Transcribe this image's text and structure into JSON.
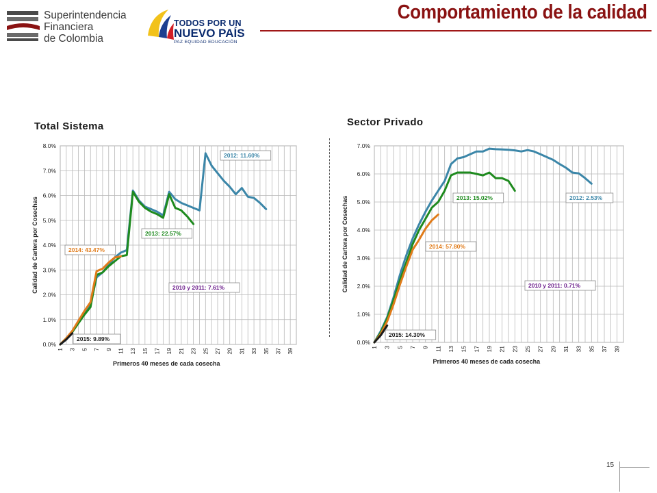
{
  "header": {
    "org_line1": "Superintendencia",
    "org_line2": "Financiera",
    "org_line3": "de Colombia",
    "gov_line1": "TODOS POR UN",
    "gov_line2": "NUEVO PAÍS",
    "gov_line3": "PAZ  EQUIDAD  EDUCACIÓN",
    "title": "Comportamiento de la calidad"
  },
  "colors": {
    "title": "#8a1212",
    "blue": "#3b86a8",
    "green": "#1e8a1e",
    "orange": "#e07b1a",
    "purple": "#6a1b8a",
    "black": "#1a1a1a"
  },
  "page_number": "15",
  "chart_data": [
    {
      "type": "line",
      "panel_title": "Total Sistema",
      "xlabel": "Primeros 40 meses de cada cosecha",
      "ylabel": "Calidad de Cartera por Cosechas",
      "xlim": [
        1,
        40
      ],
      "ylim": [
        0,
        8
      ],
      "x_ticks": [
        "1",
        "3",
        "5",
        "7",
        "9",
        "11",
        "13",
        "15",
        "17",
        "19",
        "21",
        "23",
        "25",
        "27",
        "29",
        "31",
        "33",
        "35",
        "37",
        "39"
      ],
      "y_ticks": [
        "0.0%",
        "1.0%",
        "2.0%",
        "3.0%",
        "4.0%",
        "5.0%",
        "6.0%",
        "7.0%",
        "8.0%"
      ],
      "y_tick_values": [
        0,
        1,
        2,
        3,
        4,
        5,
        6,
        7,
        8
      ],
      "grid": true,
      "series": [
        {
          "name": "2012",
          "label": "2012:  11.60%",
          "color": "#3b86a8",
          "x": [
            1,
            2,
            3,
            4,
            5,
            6,
            7,
            8,
            9,
            10,
            11,
            12,
            13,
            14,
            15,
            16,
            17,
            18,
            19,
            20,
            21,
            22,
            23,
            24,
            25,
            26,
            27,
            28,
            29,
            30,
            31,
            32,
            33,
            34,
            35
          ],
          "values": [
            0,
            0.2,
            0.5,
            0.9,
            1.3,
            1.6,
            2.7,
            2.9,
            3.2,
            3.5,
            3.7,
            3.8,
            6.2,
            5.8,
            5.55,
            5.45,
            5.35,
            5.2,
            6.15,
            5.85,
            5.7,
            5.6,
            5.5,
            5.4,
            7.7,
            7.2,
            6.9,
            6.6,
            6.35,
            6.05,
            6.3,
            5.95,
            5.9,
            5.7,
            5.45
          ]
        },
        {
          "name": "2013",
          "label": "2013:  22.57%",
          "color": "#1e8a1e",
          "x": [
            1,
            2,
            3,
            4,
            5,
            6,
            7,
            8,
            9,
            10,
            11,
            12,
            13,
            14,
            15,
            16,
            17,
            18,
            19,
            20,
            21,
            22,
            23
          ],
          "values": [
            0,
            0.25,
            0.5,
            0.85,
            1.2,
            1.5,
            2.8,
            2.9,
            3.15,
            3.35,
            3.55,
            3.6,
            6.15,
            5.75,
            5.5,
            5.35,
            5.25,
            5.1,
            6.05,
            5.5,
            5.4,
            5.15,
            4.85
          ]
        },
        {
          "name": "2014",
          "label": "2014:  43.47%",
          "color": "#e07b1a",
          "x": [
            1,
            2,
            3,
            4,
            5,
            6,
            7,
            8,
            9,
            10,
            11
          ],
          "values": [
            0,
            0.25,
            0.55,
            0.95,
            1.35,
            1.7,
            2.95,
            3.05,
            3.3,
            3.5,
            3.55
          ]
        },
        {
          "name": "2015",
          "label": "2015:  9.89%",
          "color": "#1a1a1a",
          "x": [
            1,
            2,
            3
          ],
          "values": [
            0,
            0.2,
            0.45
          ]
        }
      ],
      "annotations": [
        {
          "text": "2010 y 2011:  7.61%",
          "color": "#6a1b8a"
        }
      ]
    },
    {
      "type": "line",
      "panel_title": "Sector Privado",
      "xlabel": "Primeros 40 meses de cada cosecha",
      "ylabel": "Calidad de Cartera por Cosechas",
      "xlim": [
        1,
        40
      ],
      "ylim": [
        0,
        7
      ],
      "x_ticks": [
        "1",
        "3",
        "5",
        "7",
        "9",
        "11",
        "13",
        "15",
        "17",
        "19",
        "21",
        "23",
        "25",
        "27",
        "29",
        "31",
        "33",
        "35",
        "37",
        "39"
      ],
      "y_ticks": [
        "0.0%",
        "1.0%",
        "2.0%",
        "3.0%",
        "4.0%",
        "5.0%",
        "6.0%",
        "7.0%"
      ],
      "y_tick_values": [
        0,
        1,
        2,
        3,
        4,
        5,
        6,
        7
      ],
      "grid": true,
      "series": [
        {
          "name": "2012",
          "label": "2012:  2.53%",
          "color": "#3b86a8",
          "x": [
            1,
            2,
            3,
            4,
            5,
            6,
            7,
            8,
            9,
            10,
            11,
            12,
            13,
            14,
            15,
            16,
            17,
            18,
            19,
            20,
            21,
            22,
            23,
            24,
            25,
            26,
            27,
            28,
            29,
            30,
            31,
            32,
            33,
            34,
            35
          ],
          "values": [
            0,
            0.4,
            0.9,
            1.6,
            2.4,
            3.1,
            3.7,
            4.2,
            4.65,
            5.05,
            5.4,
            5.75,
            6.35,
            6.55,
            6.6,
            6.7,
            6.8,
            6.8,
            6.9,
            6.88,
            6.87,
            6.86,
            6.84,
            6.8,
            6.85,
            6.8,
            6.7,
            6.6,
            6.5,
            6.35,
            6.22,
            6.05,
            6.02,
            5.85,
            5.65
          ]
        },
        {
          "name": "2013",
          "label": "2013:  15.02%",
          "color": "#1e8a1e",
          "x": [
            1,
            2,
            3,
            4,
            5,
            6,
            7,
            8,
            9,
            10,
            11,
            12,
            13,
            14,
            15,
            16,
            17,
            18,
            19,
            20,
            21,
            22,
            23
          ],
          "values": [
            0,
            0.35,
            0.85,
            1.5,
            2.2,
            2.85,
            3.5,
            4.0,
            4.4,
            4.8,
            5.0,
            5.4,
            5.95,
            6.05,
            6.05,
            6.05,
            6.0,
            5.95,
            6.05,
            5.85,
            5.85,
            5.75,
            5.4
          ]
        },
        {
          "name": "2014",
          "label": "2014:  57.80%",
          "color": "#e07b1a",
          "x": [
            1,
            2,
            3,
            4,
            5,
            6,
            7,
            8,
            9,
            10,
            11
          ],
          "values": [
            0,
            0.3,
            0.75,
            1.35,
            2.05,
            2.7,
            3.3,
            3.65,
            4.05,
            4.35,
            4.55
          ]
        },
        {
          "name": "2015",
          "label": "2015:  14.30%",
          "color": "#1a1a1a",
          "x": [
            1,
            2,
            3
          ],
          "values": [
            0,
            0.25,
            0.6
          ]
        }
      ],
      "annotations": [
        {
          "text": "2010 y 2011:  0.71%",
          "color": "#6a1b8a"
        }
      ]
    }
  ]
}
